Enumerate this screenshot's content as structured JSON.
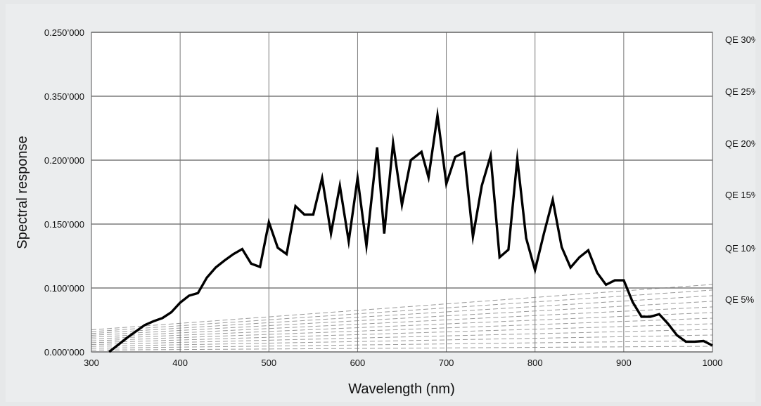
{
  "chart_data": {
    "type": "line",
    "title": "",
    "xlabel": "Wavelength (nm)",
    "ylabel": "Spectral response",
    "xlim": [
      300,
      1000
    ],
    "ylim_slots": 5,
    "x_ticks": [
      300,
      400,
      500,
      600,
      700,
      800,
      900,
      1000
    ],
    "x_tick_labels": [
      "300",
      "400",
      "500",
      "600",
      "700",
      "800",
      "900",
      "1000"
    ],
    "y_tick_labels": [
      "0.000’000",
      "0.100’000",
      "0.150’000",
      "0.200’000",
      "0.350’000",
      "0.250’000"
    ],
    "qe_labels": [
      "QE 5%",
      "QE 10%",
      "QE 15%",
      "QE 20%",
      "QE 25%",
      "QE 30%"
    ],
    "grid": true,
    "qe_reference_lines": "dashed",
    "line_color": "#000000",
    "grid_color": "#7a7a7a",
    "qe_line_color": "#9a9a9a",
    "plot_background": "#ffffff",
    "series": [
      {
        "x": [
          320,
          340,
          360,
          370,
          380,
          390,
          400,
          410,
          420,
          430,
          440,
          450,
          460,
          470,
          480,
          490,
          500,
          510,
          520,
          530,
          540,
          550,
          560,
          570,
          580,
          590,
          600,
          610,
          622,
          630,
          640,
          650,
          660,
          672,
          680,
          690,
          700,
          710,
          720,
          730,
          740,
          750,
          760,
          770,
          780,
          790,
          800,
          810,
          820,
          830,
          840,
          850,
          860,
          870,
          880,
          890,
          900,
          910,
          920,
          930,
          940,
          950,
          960,
          970,
          980,
          990,
          1000
        ],
        "y": [
          0.0,
          0.22,
          0.42,
          0.48,
          0.53,
          0.62,
          0.77,
          0.88,
          0.92,
          1.16,
          1.32,
          1.43,
          1.53,
          1.61,
          1.38,
          1.33,
          2.03,
          1.63,
          1.53,
          2.28,
          2.15,
          2.15,
          2.72,
          1.85,
          2.6,
          1.73,
          2.72,
          1.66,
          3.2,
          1.85,
          3.27,
          2.3,
          3.0,
          3.13,
          2.73,
          3.7,
          2.63,
          3.05,
          3.12,
          1.8,
          2.6,
          3.07,
          1.48,
          1.6,
          3.02,
          1.78,
          1.28,
          1.85,
          2.38,
          1.64,
          1.32,
          1.48,
          1.59,
          1.24,
          1.05,
          1.12,
          1.12,
          0.78,
          0.55,
          0.55,
          0.59,
          0.44,
          0.26,
          0.16,
          0.16,
          0.17,
          0.1
        ]
      }
    ]
  }
}
